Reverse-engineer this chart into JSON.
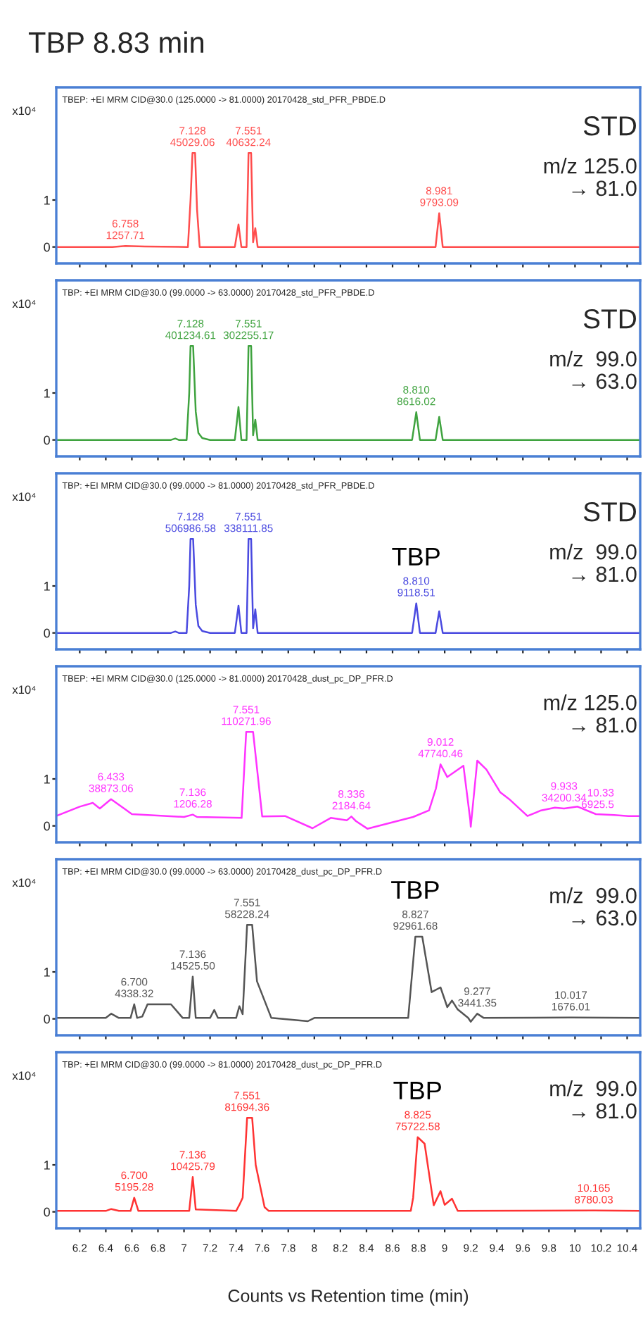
{
  "chart_data": [
    {
      "type": "line",
      "title": "TBP 8.83 min",
      "ylabel": "x10⁴",
      "xlim": [
        6.02,
        10.5
      ],
      "ylim": [
        -0.35,
        3.4
      ],
      "yticks": [
        0,
        1
      ],
      "tick_labels": "y",
      "xticks": [
        6.2,
        6.4,
        6.6,
        6.8,
        7,
        7.2,
        7.4,
        7.6,
        7.8,
        8,
        8.2,
        8.4,
        8.6,
        8.8,
        9,
        9.2,
        9.4,
        9.6,
        9.8,
        10,
        10.2,
        10.4
      ],
      "series": [
        {
          "color": "#ff4d4d",
          "x": [
            6.02,
            6.45,
            6.55,
            6.7,
            7.03,
            7.05,
            7.065,
            7.085,
            7.1,
            7.12,
            7.39,
            7.418,
            7.44,
            7.48,
            7.495,
            7.515,
            7.53,
            7.547,
            7.565,
            8.93,
            8.958,
            8.985,
            10.5
          ],
          "values": [
            0,
            0,
            0.02,
            0.01,
            0,
            1.0,
            2.0,
            2.0,
            0.8,
            0,
            0,
            0.48,
            0,
            0,
            2.0,
            2.0,
            0.1,
            0.4,
            0,
            0,
            0.72,
            0,
            0
          ]
        }
      ],
      "annotations": [
        "TBEP: +EI MRM CID@30.0 (125.0000 -> 81.0000) 20170428_std_PFR_PBDE.D",
        "STD",
        "m/z 125.0\n→ 81.0",
        {
          "text": "6.758\n1257.71",
          "x": 6.55,
          "y": 0.02
        },
        {
          "text": "7.128\n45029.06",
          "x": 7.065,
          "y": 2.0
        },
        {
          "text": "7.551\n40632.24",
          "x": 7.495,
          "y": 2.0
        },
        {
          "text": "8.981\n9793.09",
          "x": 8.958,
          "y": 0.72
        }
      ]
    },
    {
      "type": "line",
      "ylabel": "x10⁴",
      "xlim": [
        6.02,
        10.5
      ],
      "ylim": [
        -0.35,
        3.4
      ],
      "yticks": [
        0,
        1
      ],
      "tick_labels": "y",
      "xticks": [
        6.2,
        6.4,
        6.6,
        6.8,
        7,
        7.2,
        7.4,
        7.6,
        7.8,
        8,
        8.2,
        8.4,
        8.6,
        8.8,
        9,
        9.2,
        9.4,
        9.6,
        9.8,
        10,
        10.2,
        10.4
      ],
      "series": [
        {
          "color": "#3fa33f",
          "x": [
            6.02,
            6.9,
            6.933,
            6.96,
            7.02,
            7.04,
            7.05,
            7.07,
            7.09,
            7.11,
            7.14,
            7.2,
            7.39,
            7.418,
            7.44,
            7.48,
            7.495,
            7.515,
            7.53,
            7.547,
            7.565,
            8.75,
            8.782,
            8.81,
            8.93,
            8.958,
            8.985,
            10.5
          ],
          "values": [
            0,
            0,
            0.03,
            0,
            0,
            1.0,
            2.0,
            2.0,
            0.6,
            0.15,
            0.04,
            0,
            0,
            0.7,
            0,
            0,
            2.0,
            2.0,
            0.1,
            0.43,
            0,
            0,
            0.59,
            0,
            0,
            0.49,
            0,
            0
          ]
        }
      ],
      "annotations": [
        "TBP: +EI MRM CID@30.0 (99.0000 -> 63.0000) 20170428_std_PFR_PBDE.D",
        "STD",
        "m/z  99.0\n→ 63.0",
        {
          "text": "7.128\n401234.61",
          "x": 7.05,
          "y": 2.0
        },
        {
          "text": "7.551\n302255.17",
          "x": 7.495,
          "y": 2.0
        },
        {
          "text": "8.810\n8616.02",
          "x": 8.782,
          "y": 0.59
        }
      ]
    },
    {
      "type": "line",
      "ylabel": "x10⁴",
      "xlim": [
        6.02,
        10.5
      ],
      "ylim": [
        -0.35,
        3.4
      ],
      "yticks": [
        0,
        1
      ],
      "tick_labels": "y",
      "xticks": [
        6.2,
        6.4,
        6.6,
        6.8,
        7,
        7.2,
        7.4,
        7.6,
        7.8,
        8,
        8.2,
        8.4,
        8.6,
        8.8,
        9,
        9.2,
        9.4,
        9.6,
        9.8,
        10,
        10.2,
        10.4
      ],
      "series": [
        {
          "color": "#4a4ae0",
          "x": [
            6.02,
            6.9,
            6.933,
            6.96,
            7.02,
            7.04,
            7.05,
            7.07,
            7.09,
            7.11,
            7.14,
            7.2,
            7.39,
            7.418,
            7.44,
            7.48,
            7.495,
            7.515,
            7.53,
            7.547,
            7.565,
            8.75,
            8.782,
            8.81,
            8.93,
            8.958,
            8.985,
            10.5
          ],
          "values": [
            0,
            0,
            0.03,
            0,
            0,
            1.0,
            2.0,
            2.0,
            0.6,
            0.15,
            0.04,
            0,
            0,
            0.58,
            0,
            0,
            2.0,
            2.0,
            0.1,
            0.5,
            0,
            0,
            0.63,
            0,
            0,
            0.46,
            0,
            0
          ]
        }
      ],
      "annotations": [
        "TBP: +EI MRM CID@30.0 (99.0000 -> 81.0000) 20170428_std_PFR_PBDE.D",
        "STD",
        "m/z  99.0\n→ 81.0",
        {
          "text": "TBP",
          "x": 8.782,
          "y": 0.63
        },
        {
          "text": "7.128\n506986.58",
          "x": 7.05,
          "y": 2.0
        },
        {
          "text": "7.551\n338111.85",
          "x": 7.495,
          "y": 2.0
        },
        {
          "text": "8.810\n9118.51",
          "x": 8.782,
          "y": 0.63
        }
      ]
    },
    {
      "type": "line",
      "ylabel": "x10⁴",
      "xlim": [
        6.02,
        10.5
      ],
      "ylim": [
        -0.35,
        3.4
      ],
      "yticks": [
        0,
        1
      ],
      "tick_labels": "y",
      "xticks": [
        6.2,
        6.4,
        6.6,
        6.8,
        7,
        7.2,
        7.4,
        7.6,
        7.8,
        8,
        8.2,
        8.4,
        8.6,
        8.8,
        9,
        9.2,
        9.4,
        9.6,
        9.8,
        10,
        10.2,
        10.4
      ],
      "series": [
        {
          "color": "#ff33ff",
          "x": [
            6.02,
            6.2,
            6.3,
            6.354,
            6.44,
            6.55,
            6.6,
            7.0,
            7.067,
            7.1,
            7.442,
            7.477,
            7.53,
            7.6,
            7.775,
            7.986,
            8.126,
            8.25,
            8.284,
            8.32,
            8.407,
            8.758,
            8.88,
            8.933,
            8.968,
            9.02,
            9.144,
            9.196,
            9.2,
            9.25,
            9.32,
            9.425,
            9.495,
            9.635,
            9.74,
            9.846,
            9.916,
            10.02,
            10.16,
            10.3,
            10.41,
            10.5
          ],
          "values": [
            0.21,
            0.41,
            0.49,
            0.37,
            0.57,
            0.35,
            0.25,
            0.19,
            0.24,
            0.19,
            0.17,
            2.0,
            2.0,
            0.2,
            0.21,
            -0.05,
            0.17,
            0.12,
            0.2,
            0.1,
            -0.06,
            0.19,
            0.33,
            0.8,
            1.31,
            1.04,
            1.28,
            0.13,
            -0.02,
            1.39,
            1.2,
            0.72,
            0.57,
            0.21,
            0.33,
            0.39,
            0.37,
            0.41,
            0.25,
            0.23,
            0.21,
            0.21
          ]
        }
      ],
      "annotations": [
        "TBEP: +EI MRM CID@30.0 (125.0000 -> 81.0000) 20170428_dust_pc_DP_PFR.D",
        "m/z 125.0\n→ 81.0",
        {
          "text": "6.433\n38873.06",
          "x": 6.44,
          "y": 0.57
        },
        {
          "text": "7.136\n1206.28",
          "x": 7.067,
          "y": 0.24
        },
        {
          "text": "7.551\n110271.96",
          "x": 7.477,
          "y": 2.0
        },
        {
          "text": "8.336\n2184.64",
          "x": 8.284,
          "y": 0.2
        },
        {
          "text": "9.012\n47740.46",
          "x": 8.968,
          "y": 1.31
        },
        {
          "text": "9.933\n34200.34",
          "x": 9.916,
          "y": 0.37
        },
        {
          "text": "10.33\n6925.5",
          "x": 10.3,
          "y": 0.23
        }
      ]
    },
    {
      "type": "line",
      "ylabel": "x10⁴",
      "xlim": [
        6.02,
        10.5
      ],
      "ylim": [
        -0.35,
        3.4
      ],
      "yticks": [
        0,
        1
      ],
      "tick_labels": "y",
      "xticks": [
        6.2,
        6.4,
        6.6,
        6.8,
        7,
        7.2,
        7.4,
        7.6,
        7.8,
        8,
        8.2,
        8.4,
        8.6,
        8.8,
        9,
        9.2,
        9.4,
        9.6,
        9.8,
        10,
        10.2,
        10.4
      ],
      "series": [
        {
          "color": "#555555",
          "x": [
            6.02,
            6.4,
            6.442,
            6.5,
            6.59,
            6.618,
            6.64,
            6.68,
            6.72,
            6.9,
            6.99,
            7.04,
            7.067,
            7.09,
            7.2,
            7.232,
            7.26,
            7.4,
            7.425,
            7.45,
            7.484,
            7.523,
            7.56,
            7.67,
            7.95,
            8.0,
            8.72,
            8.775,
            8.828,
            8.9,
            8.968,
            9.02,
            9.056,
            9.1,
            9.18,
            9.2,
            9.25,
            9.3,
            9.968,
            10.5
          ],
          "values": [
            0.02,
            0.02,
            0.11,
            0.02,
            0.02,
            0.31,
            0.02,
            0.05,
            0.31,
            0.31,
            0.02,
            0.02,
            0.9,
            0.02,
            0.02,
            0.19,
            0.02,
            0.02,
            0.27,
            0.1,
            2.0,
            2.0,
            0.8,
            0.02,
            -0.05,
            0.02,
            0.02,
            1.75,
            1.75,
            0.57,
            0.67,
            0.25,
            0.39,
            0.2,
            0.02,
            -0.06,
            0.11,
            0.02,
            0.03,
            0.02
          ]
        }
      ],
      "annotations": [
        "TBP: +EI MRM CID@30.0 (99.0000 -> 63.0000) 20170428_dust_pc_DP_PFR.D",
        "m/z  99.0\n→ 63.0",
        {
          "text": "TBP",
          "x": 8.775,
          "y": 1.75
        },
        {
          "text": "6.700\n4338.32",
          "x": 6.618,
          "y": 0.31
        },
        {
          "text": "7.136\n14525.50",
          "x": 7.067,
          "y": 0.9
        },
        {
          "text": "7.551\n58228.24",
          "x": 7.484,
          "y": 2.0
        },
        {
          "text": "8.827\n92961.68",
          "x": 8.775,
          "y": 1.75
        },
        {
          "text": "9.277\n3441.35",
          "x": 9.25,
          "y": 0.11
        },
        {
          "text": "10.017\n1676.01",
          "x": 9.968,
          "y": 0.03
        }
      ]
    },
    {
      "type": "line",
      "ylabel": "x10⁴",
      "xlabel": "Counts vs Retention time (min)",
      "xlim": [
        6.02,
        10.5
      ],
      "ylim": [
        -0.35,
        3.4
      ],
      "yticks": [
        0,
        1
      ],
      "xticks": [
        6.2,
        6.4,
        6.6,
        6.8,
        7,
        7.2,
        7.4,
        7.6,
        7.8,
        8,
        8.2,
        8.4,
        8.6,
        8.8,
        9,
        9.2,
        9.4,
        9.6,
        9.8,
        10,
        10.2,
        10.4
      ],
      "series": [
        {
          "color": "#ff3333",
          "x": [
            6.02,
            6.4,
            6.442,
            6.5,
            6.59,
            6.618,
            6.65,
            7.04,
            7.067,
            7.09,
            7.4,
            7.425,
            7.45,
            7.484,
            7.523,
            7.55,
            7.618,
            7.65,
            8.74,
            8.758,
            8.793,
            8.846,
            8.916,
            8.968,
            9.0,
            9.056,
            9.1,
            10.144,
            10.5
          ],
          "values": [
            0.02,
            0.02,
            0.06,
            0.02,
            0.02,
            0.3,
            0.02,
            0.02,
            0.74,
            0.05,
            0.02,
            0.15,
            0.3,
            2.0,
            2.0,
            1.0,
            0.1,
            0.02,
            0.02,
            0.3,
            1.59,
            1.45,
            0.14,
            0.44,
            0.15,
            0.28,
            0.02,
            0.03,
            0.02
          ]
        }
      ],
      "annotations": [
        "TBP: +EI MRM CID@30.0 (99.0000 -> 81.0000) 20170428_dust_pc_DP_PFR.D",
        "m/z  99.0\n→ 81.0",
        {
          "text": "TBP",
          "x": 8.793,
          "y": 1.59
        },
        {
          "text": "6.700\n5195.28",
          "x": 6.618,
          "y": 0.3
        },
        {
          "text": "7.136\n10425.79",
          "x": 7.067,
          "y": 0.74
        },
        {
          "text": "7.551\n81694.36",
          "x": 7.484,
          "y": 2.0
        },
        {
          "text": "8.825\n75722.58",
          "x": 8.793,
          "y": 1.59
        },
        {
          "text": "10.165\n8780.03",
          "x": 10.144,
          "y": 0.03
        }
      ]
    }
  ]
}
